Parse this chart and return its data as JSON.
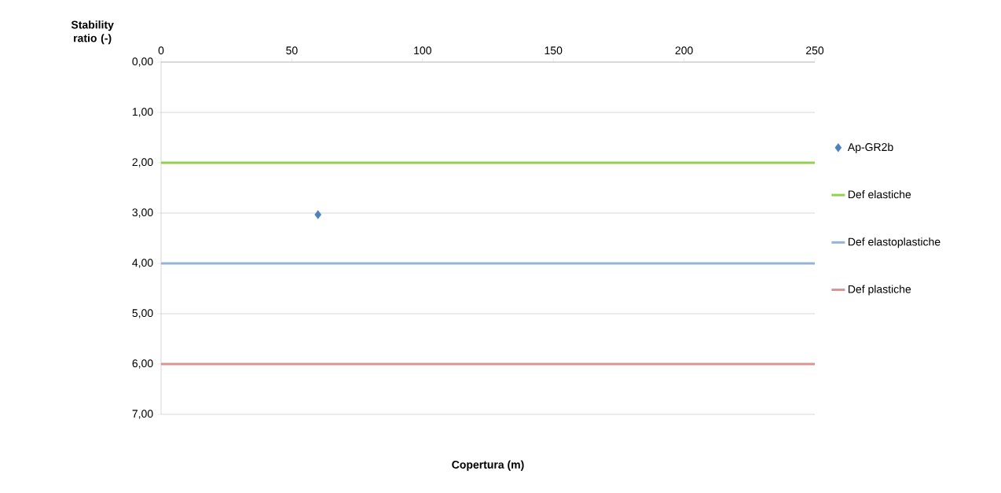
{
  "chart_data": {
    "type": "scatter",
    "ylabel": "Stability ratio (-)",
    "xlabel": "Copertura (m)",
    "xlim": [
      0,
      250
    ],
    "xticks": [
      0,
      50,
      100,
      150,
      200,
      250
    ],
    "ylim": [
      7,
      0
    ],
    "yticks": [
      {
        "value": 0,
        "label": "0,00"
      },
      {
        "value": 1,
        "label": "1,00"
      },
      {
        "value": 2,
        "label": "2,00"
      },
      {
        "value": 3,
        "label": "3,00"
      },
      {
        "value": 4,
        "label": "4,00"
      },
      {
        "value": 5,
        "label": "5,00"
      },
      {
        "value": 6,
        "label": "6,00"
      },
      {
        "value": 7,
        "label": "7,00"
      }
    ],
    "grid": "y",
    "legend": "right",
    "series": [
      {
        "name": "Ap-GR2b",
        "marker": "diamond",
        "color": "#4f81bd",
        "x": [
          60
        ],
        "values": [
          3.03
        ]
      },
      {
        "name": "Def elastiche",
        "type": "line",
        "marker": "none",
        "color": "#92d050",
        "x": [
          0,
          250
        ],
        "values": [
          2,
          2
        ]
      },
      {
        "name": "Def elastoplastiche",
        "type": "line",
        "marker": "none",
        "color": "#95b3d7",
        "x": [
          0,
          250
        ],
        "values": [
          4,
          4
        ]
      },
      {
        "name": "Def plastiche",
        "type": "line",
        "marker": "none",
        "color": "#d99594",
        "x": [
          0,
          250
        ],
        "values": [
          6,
          6
        ]
      }
    ]
  }
}
